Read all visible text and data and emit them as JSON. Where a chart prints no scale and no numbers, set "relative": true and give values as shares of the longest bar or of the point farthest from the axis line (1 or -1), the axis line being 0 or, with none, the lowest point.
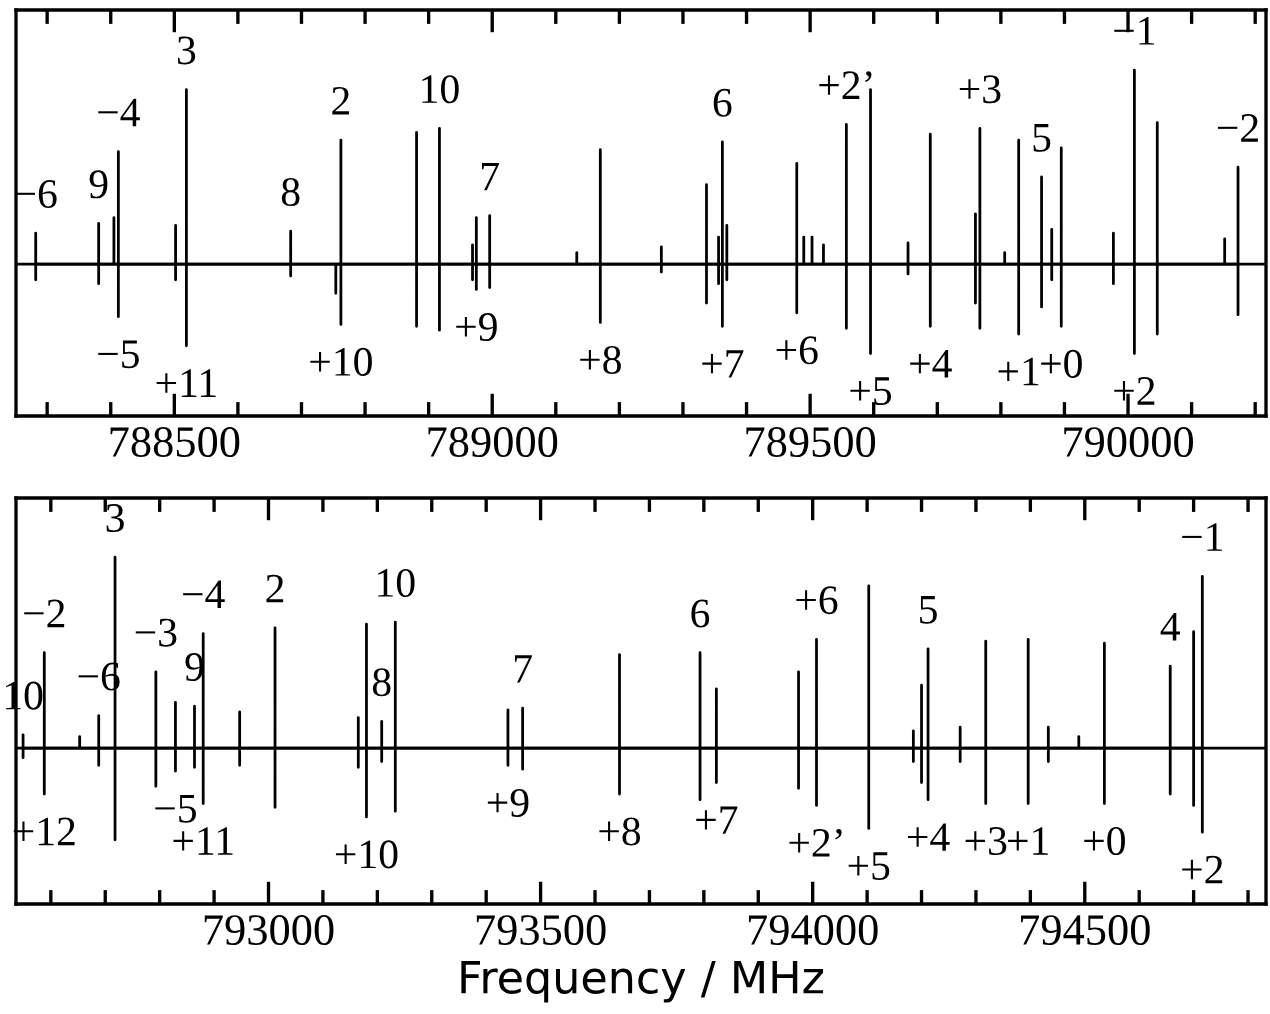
{
  "chart_data": [
    {
      "type": "line",
      "relative": true,
      "tick_labels": "x",
      "marker": "none",
      "line_style": "solid",
      "xlim": [
        788251,
        790217
      ],
      "xticks": [
        788500,
        789000,
        789500,
        790000
      ],
      "series": [
        {
          "color": "#000000",
          "x": [
            788282,
            788282,
            788282,
            788282,
            788381,
            788381,
            788381,
            788381,
            788405,
            788405,
            788405,
            788412,
            788412,
            788412,
            788412,
            788502,
            788502,
            788502,
            788502,
            788519,
            788519,
            788519,
            788519,
            788683,
            788683,
            788683,
            788683,
            788754,
            788754,
            788754,
            788762,
            788762,
            788762,
            788762,
            788881,
            788881,
            788881,
            788881,
            788917,
            788917,
            788917,
            788917,
            788969,
            788969,
            788969,
            788969,
            788975,
            788975,
            788975,
            788975,
            788996,
            788996,
            788996,
            788996,
            789133,
            789133,
            789133,
            789170,
            789170,
            789170,
            789170,
            789266,
            789266,
            789266,
            789266,
            789337,
            789337,
            789337,
            789337,
            789356,
            789356,
            789356,
            789356,
            789362,
            789362,
            789362,
            789362,
            789369,
            789369,
            789369,
            789369,
            789479,
            789479,
            789479,
            789479,
            789490,
            789490,
            789490,
            789503,
            789503,
            789503,
            789521,
            789521,
            789521,
            789557,
            789557,
            789557,
            789557,
            789595,
            789595,
            789595,
            789595,
            789654,
            789654,
            789654,
            789654,
            789689,
            789689,
            789689,
            789689,
            789760,
            789760,
            789760,
            789760,
            789767,
            789767,
            789767,
            789767,
            789806,
            789806,
            789806,
            789828,
            789828,
            789828,
            789828,
            789864,
            789864,
            789864,
            789864,
            789880,
            789880,
            789880,
            789880,
            789895,
            789895,
            789895,
            789895,
            789977,
            789977,
            789977,
            789977,
            790010,
            790010,
            790010,
            790010,
            790046,
            790046,
            790046,
            790046,
            790152,
            790152,
            790152,
            790173,
            790173,
            790173,
            790173
          ],
          "values": [
            0,
            0.16,
            -0.08,
            0,
            0,
            0.21,
            -0.1,
            0,
            0,
            0.24,
            0,
            0,
            0.58,
            -0.27,
            0,
            0,
            0.2,
            -0.08,
            0,
            0,
            0.9,
            -0.42,
            0,
            0,
            0.17,
            -0.06,
            0,
            0,
            -0.15,
            0,
            0,
            0.64,
            -0.31,
            0,
            0,
            0.68,
            -0.32,
            0,
            0,
            0.7,
            -0.34,
            0,
            0,
            0.1,
            -0.08,
            0,
            0,
            0.24,
            -0.13,
            0,
            0,
            0.25,
            -0.12,
            0,
            0,
            0.06,
            0,
            0,
            0.59,
            -0.3,
            0,
            0,
            0.09,
            -0.04,
            0,
            0,
            0.41,
            -0.2,
            0,
            0,
            0.14,
            -0.1,
            0,
            0,
            0.63,
            -0.32,
            0,
            0,
            0.2,
            -0.08,
            0,
            0,
            0.52,
            -0.25,
            0,
            0,
            0.14,
            0,
            0,
            0.14,
            0,
            0,
            0.1,
            0,
            0,
            0.72,
            -0.33,
            0,
            0,
            0.9,
            -0.46,
            0,
            0,
            0.11,
            -0.05,
            0,
            0,
            0.67,
            -0.32,
            0,
            0,
            0.26,
            -0.2,
            0,
            0,
            0.7,
            -0.33,
            0,
            0,
            0.06,
            0,
            0,
            0.64,
            -0.36,
            0,
            0,
            0.45,
            -0.22,
            0,
            0,
            0.18,
            -0.08,
            0,
            0,
            0.6,
            -0.32,
            0,
            0,
            0.16,
            -0.1,
            0,
            0,
            1.0,
            -0.46,
            0,
            0,
            0.73,
            -0.36,
            0,
            0,
            0.13,
            0,
            0,
            0.5,
            -0.26,
            0
          ]
        }
      ],
      "ref_lines": [
        {
          "axis": "y",
          "value": 0,
          "color": "#000000"
        }
      ],
      "annotations": [
        {
          "text": "−6",
          "x": 788282,
          "y": 0.16
        },
        {
          "text": "9",
          "x": 788381,
          "y": 0.21
        },
        {
          "text": "−4",
          "x": 788412,
          "y": 0.58
        },
        {
          "text": "3",
          "x": 788519,
          "y": 0.9
        },
        {
          "text": "8",
          "x": 788683,
          "y": 0.17
        },
        {
          "text": "2",
          "x": 788762,
          "y": 0.64
        },
        {
          "text": "10",
          "x": 788917,
          "y": 0.7
        },
        {
          "text": "7",
          "x": 788996,
          "y": 0.25
        },
        {
          "text": "−5",
          "x": 788412,
          "y": -0.27
        },
        {
          "text": "+11",
          "x": 788519,
          "y": -0.42
        },
        {
          "text": "+10",
          "x": 788762,
          "y": -0.31
        },
        {
          "text": "+9",
          "x": 788975,
          "y": -0.13
        },
        {
          "text": "+8",
          "x": 789170,
          "y": -0.3
        },
        {
          "text": "6",
          "x": 789362,
          "y": 0.63
        },
        {
          "text": "+2’",
          "x": 789557,
          "y": 0.72
        },
        {
          "text": "+3",
          "x": 789767,
          "y": 0.7
        },
        {
          "text": "5",
          "x": 789864,
          "y": 0.45
        },
        {
          "text": "−1",
          "x": 790010,
          "y": 1.0
        },
        {
          "text": "−2",
          "x": 790173,
          "y": 0.5
        },
        {
          "text": "+7",
          "x": 789362,
          "y": -0.32
        },
        {
          "text": "+6",
          "x": 789479,
          "y": -0.25
        },
        {
          "text": "+5",
          "x": 789595,
          "y": -0.46
        },
        {
          "text": "+4",
          "x": 789689,
          "y": -0.32
        },
        {
          "text": "+1",
          "x": 789828,
          "y": -0.36
        },
        {
          "text": "+0",
          "x": 789895,
          "y": -0.32
        },
        {
          "text": "+2",
          "x": 790010,
          "y": -0.46
        }
      ]
    },
    {
      "type": "line",
      "relative": true,
      "tick_labels": "x",
      "marker": "none",
      "line_style": "solid",
      "ref_lines": [
        {
          "axis": "y",
          "value": 0,
          "color": "#000000"
        }
      ],
      "xlabel": "Frequency / MHz",
      "xlim": [
        792536,
        794833
      ],
      "xticks": [
        793000,
        793500,
        794000,
        794500
      ],
      "series": [
        {
          "color": "#000000",
          "x": [
            792549,
            792549,
            792549,
            792549,
            792588,
            792588,
            792588,
            792588,
            792653,
            792653,
            792653,
            792688,
            792688,
            792688,
            792688,
            792718,
            792718,
            792718,
            792718,
            792793,
            792793,
            792793,
            792793,
            792829,
            792829,
            792829,
            792829,
            792864,
            792864,
            792864,
            792864,
            792880,
            792880,
            792880,
            792880,
            792947,
            792947,
            792947,
            792947,
            793012,
            793012,
            793012,
            793012,
            793165,
            793165,
            793165,
            793165,
            793180,
            793180,
            793180,
            793180,
            793208,
            793208,
            793208,
            793208,
            793233,
            793233,
            793233,
            793233,
            793440,
            793440,
            793440,
            793440,
            793467,
            793467,
            793467,
            793467,
            793645,
            793645,
            793645,
            793645,
            793793,
            793793,
            793793,
            793793,
            793823,
            793823,
            793823,
            793823,
            793974,
            793974,
            793974,
            793974,
            794007,
            794007,
            794007,
            794007,
            794103,
            794103,
            794103,
            794103,
            794185,
            794185,
            794185,
            794185,
            794200,
            794200,
            794200,
            794200,
            794212,
            794212,
            794212,
            794212,
            794271,
            794271,
            794271,
            794271,
            794318,
            794318,
            794318,
            794318,
            794396,
            794396,
            794396,
            794396,
            794433,
            794433,
            794433,
            794433,
            794489,
            794489,
            794489,
            794536,
            794536,
            794536,
            794536,
            794657,
            794657,
            794657,
            794657,
            794700,
            794700,
            794700,
            794700,
            794716,
            794716,
            794716,
            794716
          ],
          "values": [
            0,
            0.07,
            -0.05,
            0,
            0,
            0.5,
            -0.24,
            0,
            0,
            0.06,
            0,
            0,
            0.17,
            -0.09,
            0,
            0,
            1.0,
            -0.48,
            0,
            0,
            0.4,
            -0.2,
            0,
            0,
            0.24,
            -0.12,
            0,
            0,
            0.22,
            -0.1,
            0,
            0,
            0.6,
            -0.29,
            0,
            0,
            0.19,
            -0.09,
            0,
            0,
            0.63,
            -0.31,
            0,
            0,
            0.16,
            -0.1,
            0,
            0,
            0.65,
            -0.36,
            0,
            0,
            0.14,
            -0.07,
            0,
            0,
            0.66,
            -0.33,
            0,
            0,
            0.2,
            -0.09,
            0,
            0,
            0.21,
            -0.11,
            0,
            0,
            0.49,
            -0.24,
            0,
            0,
            0.5,
            -0.27,
            0,
            0,
            0.31,
            -0.18,
            0,
            0,
            0.4,
            -0.21,
            0,
            0,
            0.57,
            -0.3,
            0,
            0,
            0.85,
            -0.42,
            0,
            0,
            0.09,
            -0.07,
            0,
            0,
            0.33,
            -0.18,
            0,
            0,
            0.52,
            -0.27,
            0,
            0,
            0.11,
            -0.07,
            0,
            0,
            0.56,
            -0.29,
            0,
            0,
            0.57,
            -0.29,
            0,
            0,
            0.11,
            -0.07,
            0,
            0,
            0.06,
            0,
            0,
            0.55,
            -0.29,
            0,
            0,
            0.43,
            -0.24,
            0,
            0,
            0.61,
            -0.3,
            0,
            0,
            0.9,
            -0.44,
            0
          ]
        }
      ],
      "annotations": [
        {
          "text": "10",
          "x": 792549,
          "y": 0.07
        },
        {
          "text": "−2",
          "x": 792588,
          "y": 0.5
        },
        {
          "text": "3",
          "x": 792718,
          "y": 1.0
        },
        {
          "text": "−6",
          "x": 792688,
          "y": 0.17
        },
        {
          "text": "−3",
          "x": 792793,
          "y": 0.4
        },
        {
          "text": "−4",
          "x": 792880,
          "y": 0.6
        },
        {
          "text": "9",
          "x": 792864,
          "y": 0.22
        },
        {
          "text": "2",
          "x": 793012,
          "y": 0.63
        },
        {
          "text": "10",
          "x": 793233,
          "y": 0.66
        },
        {
          "text": "8",
          "x": 793208,
          "y": 0.14
        },
        {
          "text": "7",
          "x": 793467,
          "y": 0.21
        },
        {
          "text": "+12",
          "x": 792588,
          "y": -0.24
        },
        {
          "text": "−5",
          "x": 792829,
          "y": -0.12
        },
        {
          "text": "+11",
          "x": 792880,
          "y": -0.29
        },
        {
          "text": "+10",
          "x": 793180,
          "y": -0.36
        },
        {
          "text": "+9",
          "x": 793440,
          "y": -0.09
        },
        {
          "text": "+8",
          "x": 793645,
          "y": -0.24
        },
        {
          "text": "6",
          "x": 793793,
          "y": 0.5
        },
        {
          "text": "+6",
          "x": 794007,
          "y": 0.57
        },
        {
          "text": "5",
          "x": 794212,
          "y": 0.52
        },
        {
          "text": "4",
          "x": 794657,
          "y": 0.43
        },
        {
          "text": "−1",
          "x": 794716,
          "y": 0.9
        },
        {
          "text": "+7",
          "x": 793823,
          "y": -0.18
        },
        {
          "text": "+2’",
          "x": 794007,
          "y": -0.3
        },
        {
          "text": "+5",
          "x": 794103,
          "y": -0.42
        },
        {
          "text": "+4",
          "x": 794212,
          "y": -0.27
        },
        {
          "text": "+3",
          "x": 794318,
          "y": -0.29
        },
        {
          "text": "+1",
          "x": 794396,
          "y": -0.29
        },
        {
          "text": "+0",
          "x": 794536,
          "y": -0.29
        },
        {
          "text": "+2",
          "x": 794716,
          "y": -0.44
        }
      ]
    }
  ]
}
